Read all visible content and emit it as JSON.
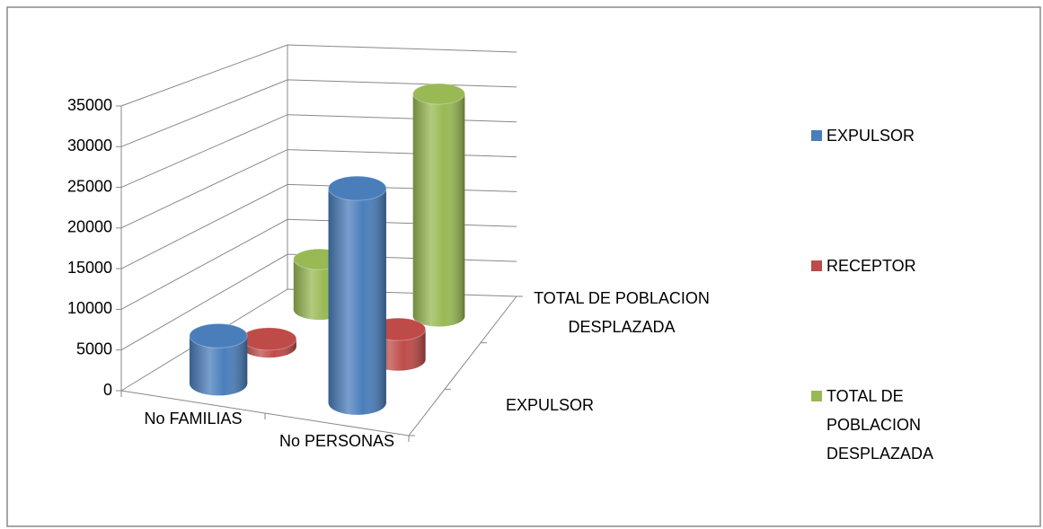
{
  "chart_data": {
    "type": "bar3d",
    "categories": [
      "No FAMILIAS",
      "No PERSONAS"
    ],
    "depth_categories": [
      "EXPULSOR",
      null,
      "TOTAL DE POBLACION DESPLAZADA"
    ],
    "series": [
      {
        "name": "EXPULSOR",
        "color": "#4a7ebb",
        "values": [
          6000,
          27000
        ]
      },
      {
        "name": "RECEPTOR",
        "color": "#be4b48",
        "values": [
          1000,
          4000
        ]
      },
      {
        "name": "TOTAL DE POBLACION DESPLAZADA",
        "color": "#98b954",
        "values": [
          7000,
          31000
        ]
      }
    ],
    "ylim": [
      0,
      35000
    ],
    "yticks": [
      0,
      5000,
      10000,
      15000,
      20000,
      25000,
      30000,
      35000
    ],
    "grid": true,
    "legend": "right"
  }
}
